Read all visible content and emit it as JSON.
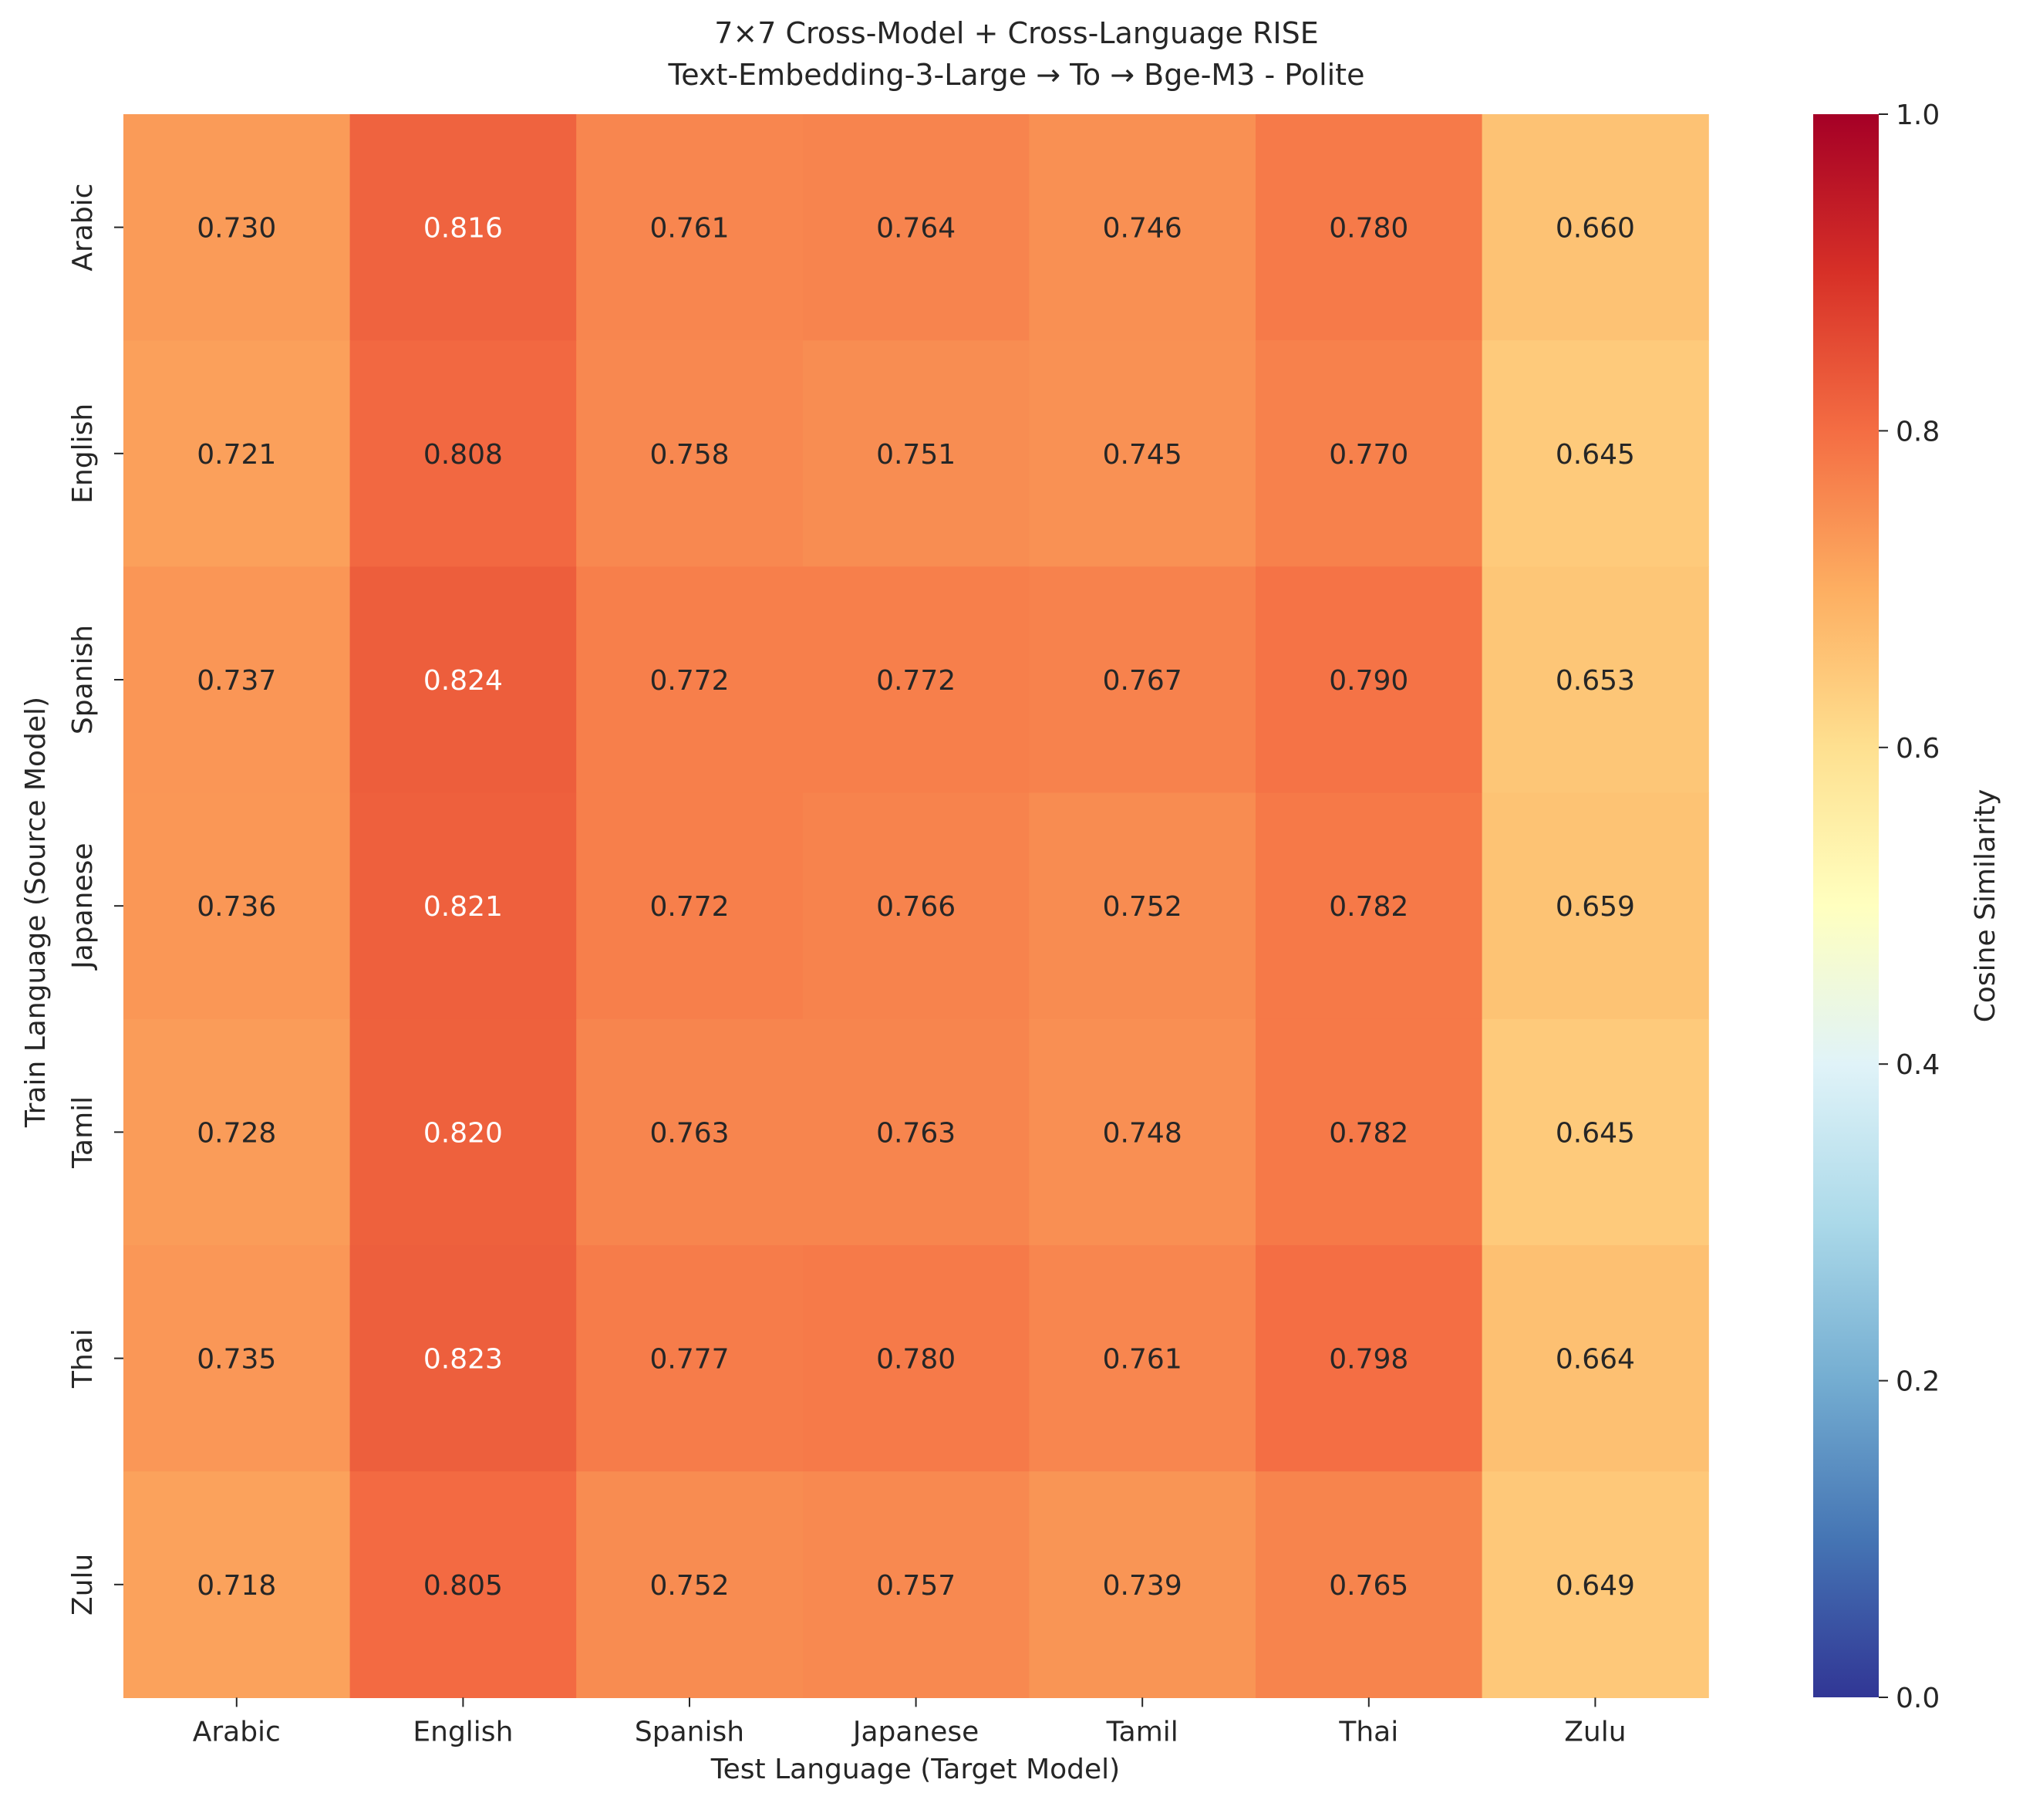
{
  "chart_data": {
    "type": "heatmap",
    "title_line1": "7×7 Cross-Model + Cross-Language RISE",
    "title_line2": "Text-Embedding-3-Large → To → Bge-M3 - Polite",
    "xlabel": "Test Language (Target Model)",
    "ylabel": "Train Language (Source Model)",
    "x_categories": [
      "Arabic",
      "English",
      "Spanish",
      "Japanese",
      "Tamil",
      "Thai",
      "Zulu"
    ],
    "y_categories": [
      "Arabic",
      "English",
      "Spanish",
      "Japanese",
      "Tamil",
      "Thai",
      "Zulu"
    ],
    "values": [
      [
        0.73,
        0.816,
        0.761,
        0.764,
        0.746,
        0.78,
        0.66
      ],
      [
        0.721,
        0.808,
        0.758,
        0.751,
        0.745,
        0.77,
        0.645
      ],
      [
        0.737,
        0.824,
        0.772,
        0.772,
        0.767,
        0.79,
        0.653
      ],
      [
        0.736,
        0.821,
        0.772,
        0.766,
        0.752,
        0.782,
        0.659
      ],
      [
        0.728,
        0.82,
        0.763,
        0.763,
        0.748,
        0.782,
        0.645
      ],
      [
        0.735,
        0.823,
        0.777,
        0.78,
        0.761,
        0.798,
        0.664
      ],
      [
        0.718,
        0.805,
        0.752,
        0.757,
        0.739,
        0.765,
        0.649
      ]
    ],
    "value_format": "3 decimals",
    "colormap": "RdYlBu_r",
    "colorbar": {
      "label": "Cosine Similarity",
      "range": [
        0.0,
        1.0
      ],
      "ticks": [
        "0.0",
        "0.2",
        "0.4",
        "0.6",
        "0.8",
        "1.0"
      ],
      "stops": [
        "#313695",
        "#4575b4",
        "#74add1",
        "#abd9e9",
        "#e0f3f8",
        "#ffffbf",
        "#fee090",
        "#fdae61",
        "#f46d43",
        "#d73027",
        "#a50026"
      ]
    }
  }
}
